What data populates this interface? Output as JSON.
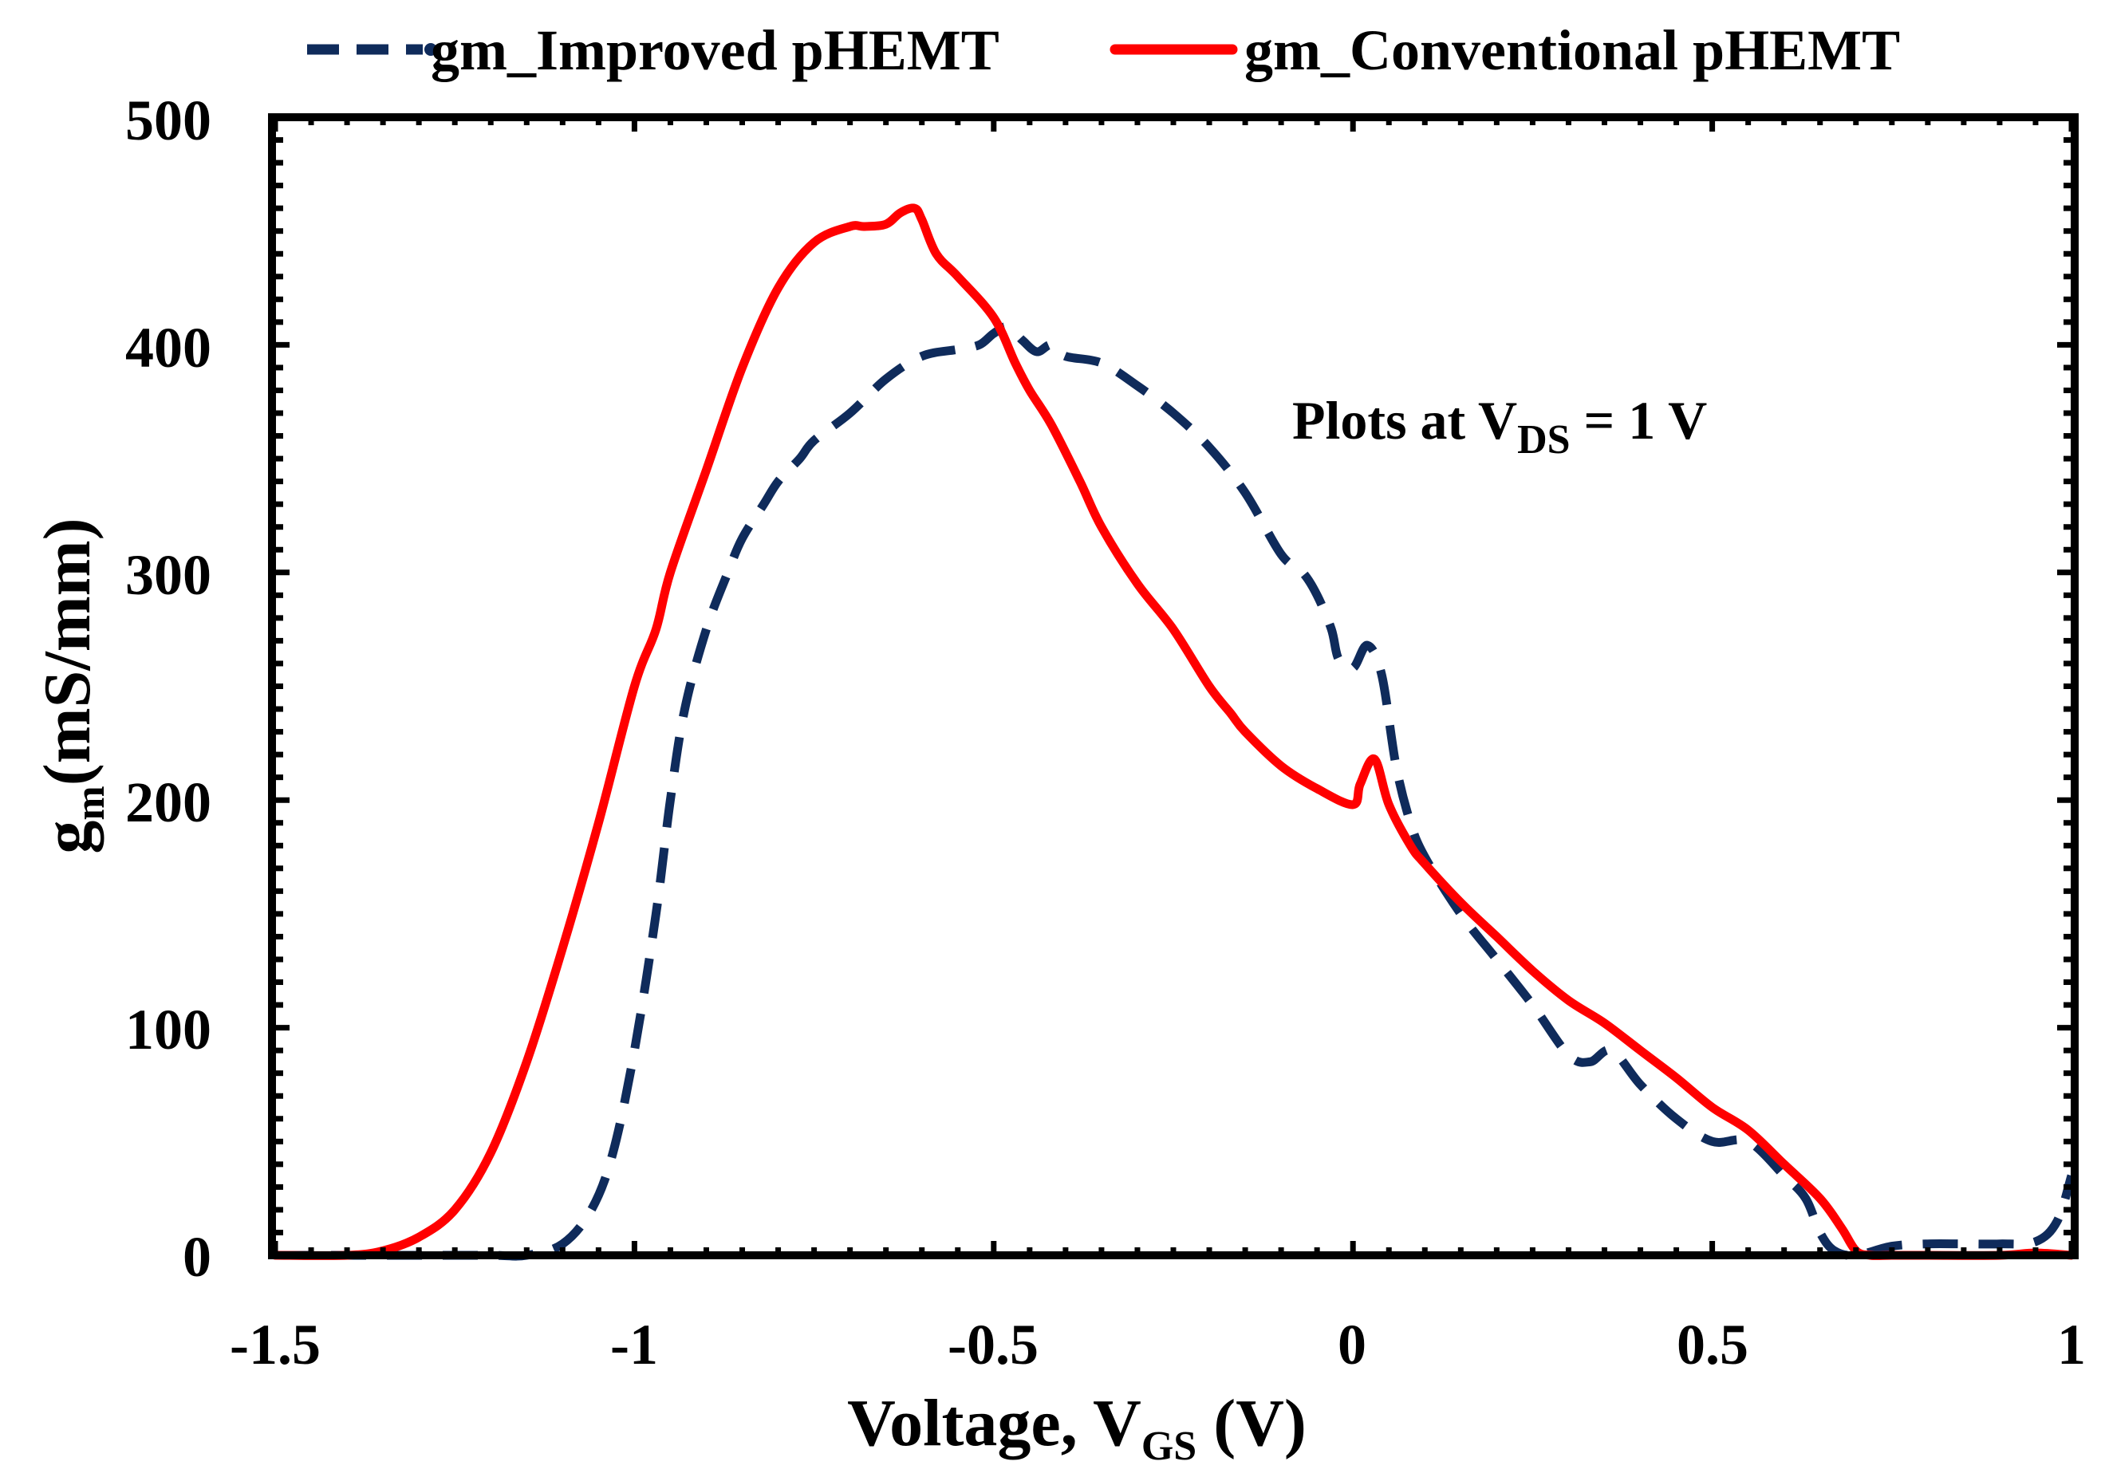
{
  "chart_data": {
    "type": "line",
    "title": "",
    "xlabel": "Voltage, V",
    "xlabel_sub": "GS",
    "xlabel_suffix": " (V)",
    "ylabel": "g",
    "ylabel_sub": "m",
    "ylabel_suffix": "(mS/mm)",
    "xlim": [
      -1.5,
      1.0
    ],
    "ylim": [
      0,
      500
    ],
    "x_ticks": [
      -1.5,
      -1.0,
      -0.5,
      0.0,
      0.5,
      1.0
    ],
    "x_tick_labels": [
      "-1.5",
      "-1",
      "-0.5",
      "0",
      "0.5",
      "1"
    ],
    "y_ticks": [
      0,
      100,
      200,
      300,
      400,
      500
    ],
    "y_tick_labels": [
      "0",
      "100",
      "200",
      "300",
      "400",
      "500"
    ],
    "grid": false,
    "legend_position": "top",
    "annotation": {
      "prefix": "Plots at V",
      "sub": "DS",
      "suffix": " = 1 V"
    },
    "series": [
      {
        "name": "gm_Improved pHEMT",
        "color": "#0f2b5b",
        "style": "dashed",
        "x": [
          -1.5,
          -1.3,
          -1.2,
          -1.15,
          -1.1,
          -1.06,
          -1.03,
          -1.0,
          -0.97,
          -0.95,
          -0.93,
          -0.9,
          -0.87,
          -0.85,
          -0.82,
          -0.8,
          -0.77,
          -0.75,
          -0.7,
          -0.65,
          -0.6,
          -0.55,
          -0.52,
          -0.5,
          -0.48,
          -0.46,
          -0.44,
          -0.42,
          -0.4,
          -0.35,
          -0.3,
          -0.25,
          -0.2,
          -0.15,
          -0.1,
          -0.07,
          -0.05,
          -0.03,
          -0.02,
          0.0,
          0.02,
          0.04,
          0.06,
          0.08,
          0.1,
          0.15,
          0.2,
          0.25,
          0.3,
          0.33,
          0.36,
          0.4,
          0.45,
          0.5,
          0.55,
          0.6,
          0.63,
          0.65,
          0.67,
          0.7,
          0.75,
          0.8,
          0.85,
          0.9,
          0.95,
          0.98,
          1.0
        ],
        "y": [
          0,
          0,
          0,
          0,
          5,
          20,
          45,
          90,
          150,
          200,
          240,
          275,
          300,
          315,
          330,
          340,
          350,
          358,
          370,
          385,
          395,
          398,
          400,
          405,
          408,
          402,
          397,
          400,
          395,
          392,
          382,
          370,
          355,
          335,
          308,
          300,
          290,
          275,
          262,
          258,
          268,
          255,
          215,
          190,
          175,
          150,
          130,
          110,
          88,
          85,
          90,
          75,
          60,
          50,
          50,
          35,
          25,
          10,
          2,
          0,
          4,
          5,
          5,
          5,
          6,
          15,
          35
        ]
      },
      {
        "name": "gm_Conventional pHEMT",
        "color": "#ff0000",
        "style": "solid",
        "x": [
          -1.5,
          -1.4,
          -1.35,
          -1.3,
          -1.25,
          -1.2,
          -1.15,
          -1.1,
          -1.05,
          -1.0,
          -0.97,
          -0.95,
          -0.9,
          -0.85,
          -0.8,
          -0.75,
          -0.7,
          -0.68,
          -0.65,
          -0.63,
          -0.61,
          -0.6,
          -0.58,
          -0.55,
          -0.5,
          -0.47,
          -0.45,
          -0.42,
          -0.38,
          -0.35,
          -0.3,
          -0.25,
          -0.2,
          -0.17,
          -0.15,
          -0.1,
          -0.05,
          0.0,
          0.01,
          0.03,
          0.05,
          0.08,
          0.1,
          0.15,
          0.2,
          0.25,
          0.3,
          0.35,
          0.4,
          0.45,
          0.5,
          0.55,
          0.6,
          0.65,
          0.68,
          0.7,
          0.72,
          0.75,
          0.8,
          0.9,
          0.95,
          1.0
        ],
        "y": [
          0,
          0,
          2,
          8,
          20,
          45,
          85,
          135,
          190,
          250,
          275,
          300,
          345,
          390,
          425,
          445,
          452,
          452,
          453,
          458,
          460,
          455,
          440,
          430,
          412,
          392,
          380,
          365,
          340,
          320,
          295,
          275,
          250,
          238,
          230,
          215,
          205,
          198,
          207,
          218,
          198,
          180,
          172,
          155,
          140,
          125,
          112,
          102,
          90,
          78,
          65,
          55,
          40,
          25,
          12,
          2,
          0,
          0,
          0,
          0,
          1,
          0
        ]
      }
    ]
  }
}
